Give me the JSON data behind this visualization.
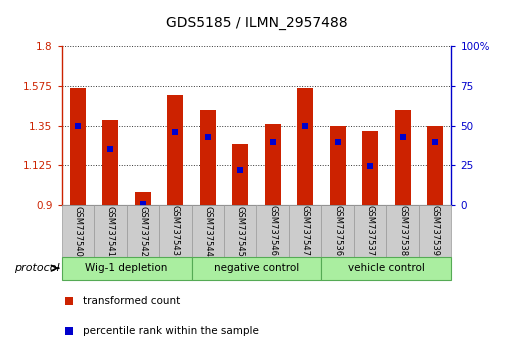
{
  "title": "GDS5185 / ILMN_2957488",
  "samples": [
    "GSM737540",
    "GSM737541",
    "GSM737542",
    "GSM737543",
    "GSM737544",
    "GSM737545",
    "GSM737546",
    "GSM737547",
    "GSM737536",
    "GSM737537",
    "GSM737538",
    "GSM737539"
  ],
  "groups": [
    {
      "label": "Wig-1 depletion",
      "indices": [
        0,
        1,
        2,
        3
      ]
    },
    {
      "label": "negative control",
      "indices": [
        4,
        5,
        6,
        7
      ]
    },
    {
      "label": "vehicle control",
      "indices": [
        8,
        9,
        10,
        11
      ]
    }
  ],
  "bar_top": [
    1.565,
    1.38,
    0.975,
    1.525,
    1.44,
    1.245,
    1.36,
    1.565,
    1.35,
    1.32,
    1.44,
    1.35
  ],
  "bar_bottom": 0.9,
  "blue_value": [
    1.35,
    1.22,
    0.91,
    1.315,
    1.285,
    1.1,
    1.255,
    1.35,
    1.255,
    1.12,
    1.285,
    1.255
  ],
  "ylim_left": [
    0.9,
    1.8
  ],
  "ylim_right": [
    0,
    100
  ],
  "yticks_left": [
    0.9,
    1.125,
    1.35,
    1.575,
    1.8
  ],
  "yticks_right": [
    0,
    25,
    50,
    75,
    100
  ],
  "bar_color": "#cc2200",
  "blue_color": "#0000cc",
  "group_color": "#aaeea0",
  "group_border": "#55aa55",
  "sample_bg_color": "#cccccc",
  "sample_border_color": "#999999",
  "legend_red_label": "transformed count",
  "legend_blue_label": "percentile rank within the sample",
  "protocol_label": "protocol"
}
